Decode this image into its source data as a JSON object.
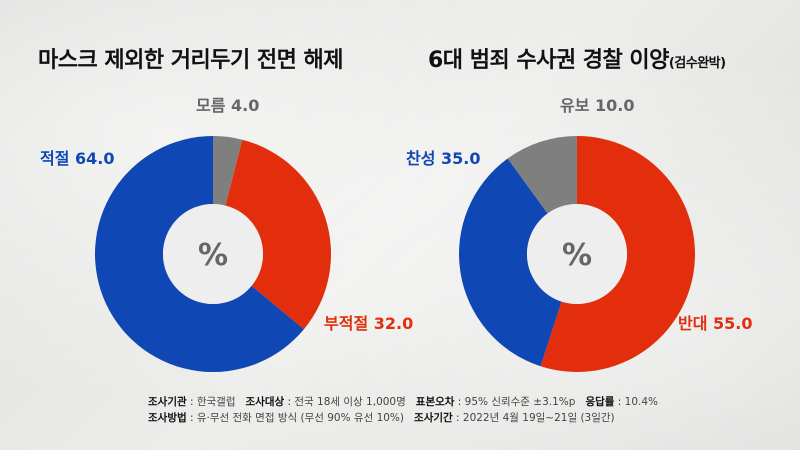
{
  "colors": {
    "blue": "#0f47b5",
    "red": "#e22e0c",
    "gray": "#7f7f7f",
    "center": "#eeeeee"
  },
  "center_symbol": "%",
  "chart_data": [
    {
      "type": "pie",
      "title": "마스크 제외한 거리두기 전면 해제",
      "subtitle": "",
      "slices": [
        {
          "name": "모름",
          "value": 4.0,
          "color": "#7f7f7f",
          "display": "모름 4.0"
        },
        {
          "name": "부적절",
          "value": 32.0,
          "color": "#e22e0c",
          "display": "부적절 32.0"
        },
        {
          "name": "적절",
          "value": 64.0,
          "color": "#0f47b5",
          "display": "적절 64.0"
        }
      ]
    },
    {
      "type": "pie",
      "title": "6대 범죄 수사권 경찰 이양",
      "subtitle": "(검수완박)",
      "slices": [
        {
          "name": "반대",
          "value": 55.0,
          "color": "#e22e0c",
          "display": "반대 55.0"
        },
        {
          "name": "찬성",
          "value": 35.0,
          "color": "#0f47b5",
          "display": "찬성 35.0"
        },
        {
          "name": "유보",
          "value": 10.0,
          "color": "#7f7f7f",
          "display": "유보 10.0"
        }
      ]
    }
  ],
  "footer": {
    "line1": [
      {
        "key": "조사기관",
        "value": "한국갤럽"
      },
      {
        "key": "조사대상",
        "value": "전국 18세 이상 1,000명"
      },
      {
        "key": "표본오차",
        "value": "95% 신뢰수준 ±3.1%p"
      },
      {
        "key": "응답률",
        "value": "10.4%"
      }
    ],
    "line2": [
      {
        "key": "조사방법",
        "value": "유·무선 전화 면접 방식 (무선 90% 유선 10%)"
      },
      {
        "key": "조사기간",
        "value": "2022년 4월 19일~21일 (3일간)"
      }
    ]
  }
}
